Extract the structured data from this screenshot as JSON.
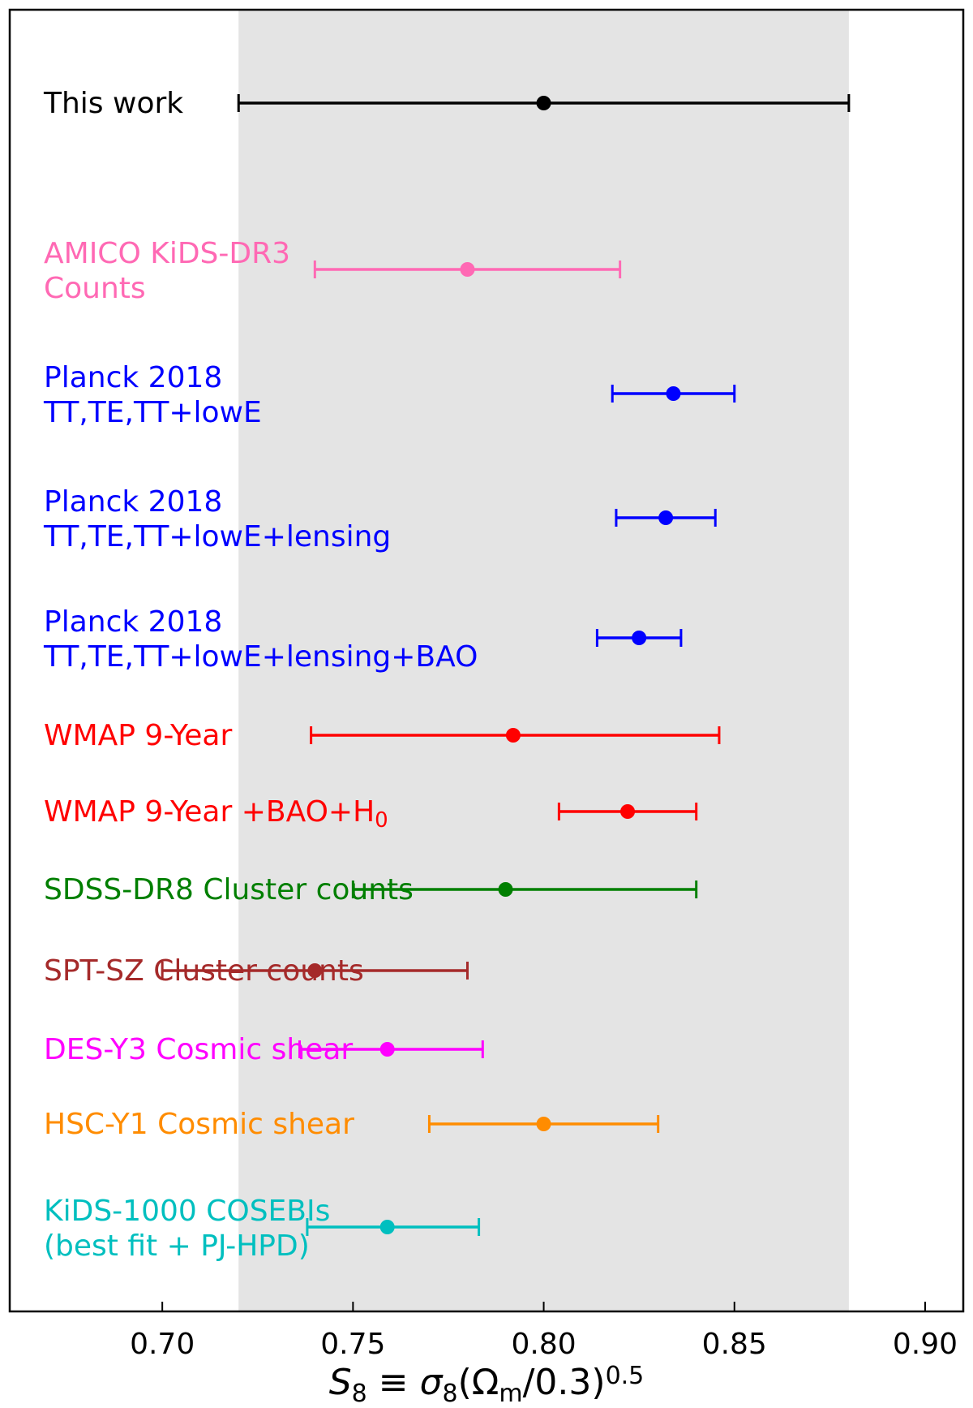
{
  "chart_data": {
    "type": "scatter",
    "subtype": "forest-plot-errorbars",
    "xlabel": {
      "main": "S",
      "sub1": "8",
      "mid": " ≡ σ",
      "sub2": "8",
      "open": "(Ω",
      "sub3": "m",
      "close": "/0.3)",
      "sup": "0.5"
    },
    "xlim": [
      0.66,
      0.91
    ],
    "xticks": [
      {
        "value": 0.7,
        "label": "0.70"
      },
      {
        "value": 0.75,
        "label": "0.75"
      },
      {
        "value": 0.8,
        "label": "0.80"
      },
      {
        "value": 0.85,
        "label": "0.85"
      },
      {
        "value": 0.9,
        "label": "0.90"
      }
    ],
    "grid": false,
    "band": {
      "from": 0.72,
      "to": 0.88,
      "color": "#e4e4e4"
    },
    "series": [
      {
        "lines": [
          "This work"
        ],
        "label_sub": "",
        "color": "#000000",
        "value": 0.8,
        "lo": 0.72,
        "hi": 0.88
      },
      {
        "lines": [
          "AMICO KiDS-DR3",
          "Counts"
        ],
        "label_sub": "",
        "color": "#ff69b4",
        "value": 0.78,
        "lo": 0.74,
        "hi": 0.82
      },
      {
        "lines": [
          "Planck 2018",
          "TT,TE,TT+lowE"
        ],
        "label_sub": "",
        "color": "#0000ff",
        "value": 0.834,
        "lo": 0.818,
        "hi": 0.85
      },
      {
        "lines": [
          "Planck 2018",
          "TT,TE,TT+lowE+lensing"
        ],
        "label_sub": "",
        "color": "#0000ff",
        "value": 0.832,
        "lo": 0.819,
        "hi": 0.845
      },
      {
        "lines": [
          "Planck 2018",
          "TT,TE,TT+lowE+lensing+BAO"
        ],
        "label_sub": "",
        "color": "#0000ff",
        "value": 0.825,
        "lo": 0.814,
        "hi": 0.836
      },
      {
        "lines": [
          "WMAP 9-Year"
        ],
        "label_sub": "",
        "color": "#ff0000",
        "value": 0.792,
        "lo": 0.739,
        "hi": 0.846
      },
      {
        "lines": [
          "WMAP 9-Year +BAO+H"
        ],
        "label_sub": "0",
        "color": "#ff0000",
        "value": 0.822,
        "lo": 0.804,
        "hi": 0.84
      },
      {
        "lines": [
          "SDSS-DR8 Cluster counts"
        ],
        "label_sub": "",
        "color": "#007f00",
        "value": 0.79,
        "lo": 0.75,
        "hi": 0.84
      },
      {
        "lines": [
          "SPT-SZ Cluster counts"
        ],
        "label_sub": "",
        "color": "#a52a2a",
        "value": 0.74,
        "lo": 0.7,
        "hi": 0.78
      },
      {
        "lines": [
          "DES-Y3 Cosmic shear"
        ],
        "label_sub": "",
        "color": "#ff00ff",
        "value": 0.759,
        "lo": 0.736,
        "hi": 0.784
      },
      {
        "lines": [
          "HSC-Y1 Cosmic shear"
        ],
        "label_sub": "",
        "color": "#ff8c00",
        "value": 0.8,
        "lo": 0.77,
        "hi": 0.83
      },
      {
        "lines": [
          "KiDS-1000 COSEBIs",
          "(best fit + PJ-HPD)"
        ],
        "label_sub": "",
        "color": "#00bfbf",
        "value": 0.759,
        "lo": 0.738,
        "hi": 0.783
      }
    ]
  }
}
